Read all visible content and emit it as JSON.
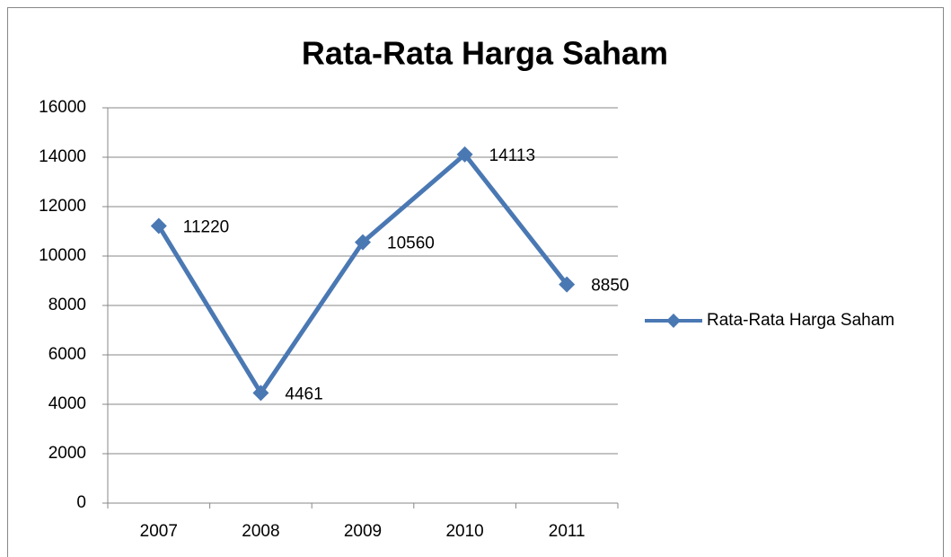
{
  "chart_data": {
    "type": "line",
    "title": "Rata-Rata Harga Saham",
    "categories": [
      "2007",
      "2008",
      "2009",
      "2010",
      "2011"
    ],
    "series": [
      {
        "name": "Rata-Rata Harga Saham",
        "color": "#4a78b3",
        "values": [
          11220,
          4461,
          10560,
          14113,
          8850
        ]
      }
    ],
    "ylim": [
      0,
      16000
    ],
    "yticks": [
      0,
      2000,
      4000,
      6000,
      8000,
      10000,
      12000,
      14000,
      16000
    ],
    "grid": true,
    "legend": "right",
    "data_labels": true
  }
}
